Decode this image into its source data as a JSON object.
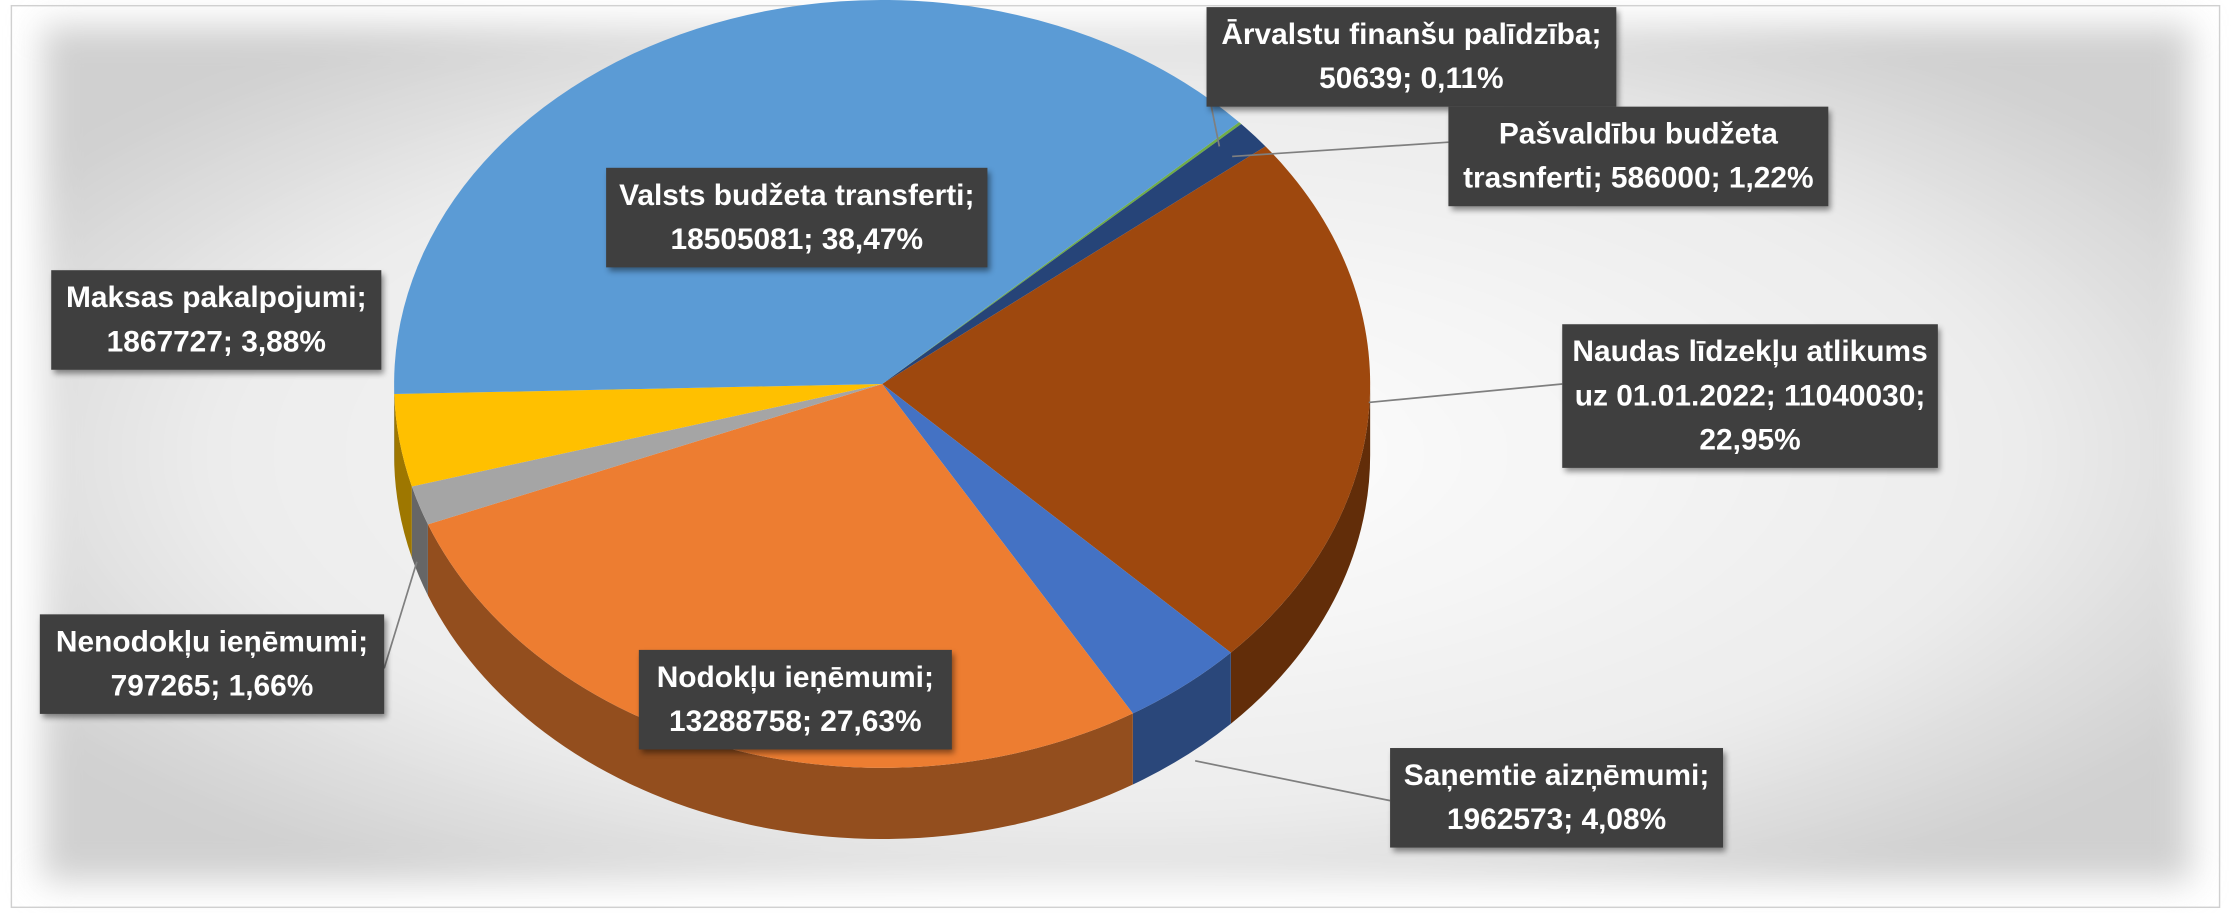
{
  "chart_data": {
    "type": "pie3d",
    "categories": [
      "Ārvalstu finanšu palīdzība",
      "Pašvaldību budžeta trasnferti",
      "Naudas līdzekļu atlikums uz 01.01.2022",
      "Saņemtie aizņēmumi",
      "Nodokļu ieņēmumi",
      "Nenodokļu ieņēmumi",
      "Maksas pakalpojumi",
      "Valsts budžeta transferti"
    ],
    "values": [
      50639,
      586000,
      11040030,
      1962573,
      13288758,
      797265,
      1867727,
      18505081
    ],
    "percents": [
      0.11,
      1.22,
      22.95,
      4.08,
      27.63,
      1.66,
      3.88,
      38.47
    ],
    "percent_labels": [
      "0,11%",
      "1,22%",
      "22,95%",
      "4,08%",
      "27,63%",
      "1,66%",
      "3,88%",
      "38,47%"
    ],
    "label_separator": ";",
    "colors": [
      "#70ad47",
      "#264478",
      "#9e480e",
      "#4472c4",
      "#ed7d31",
      "#a5a5a5",
      "#ffc000",
      "#5b9bd5"
    ]
  }
}
